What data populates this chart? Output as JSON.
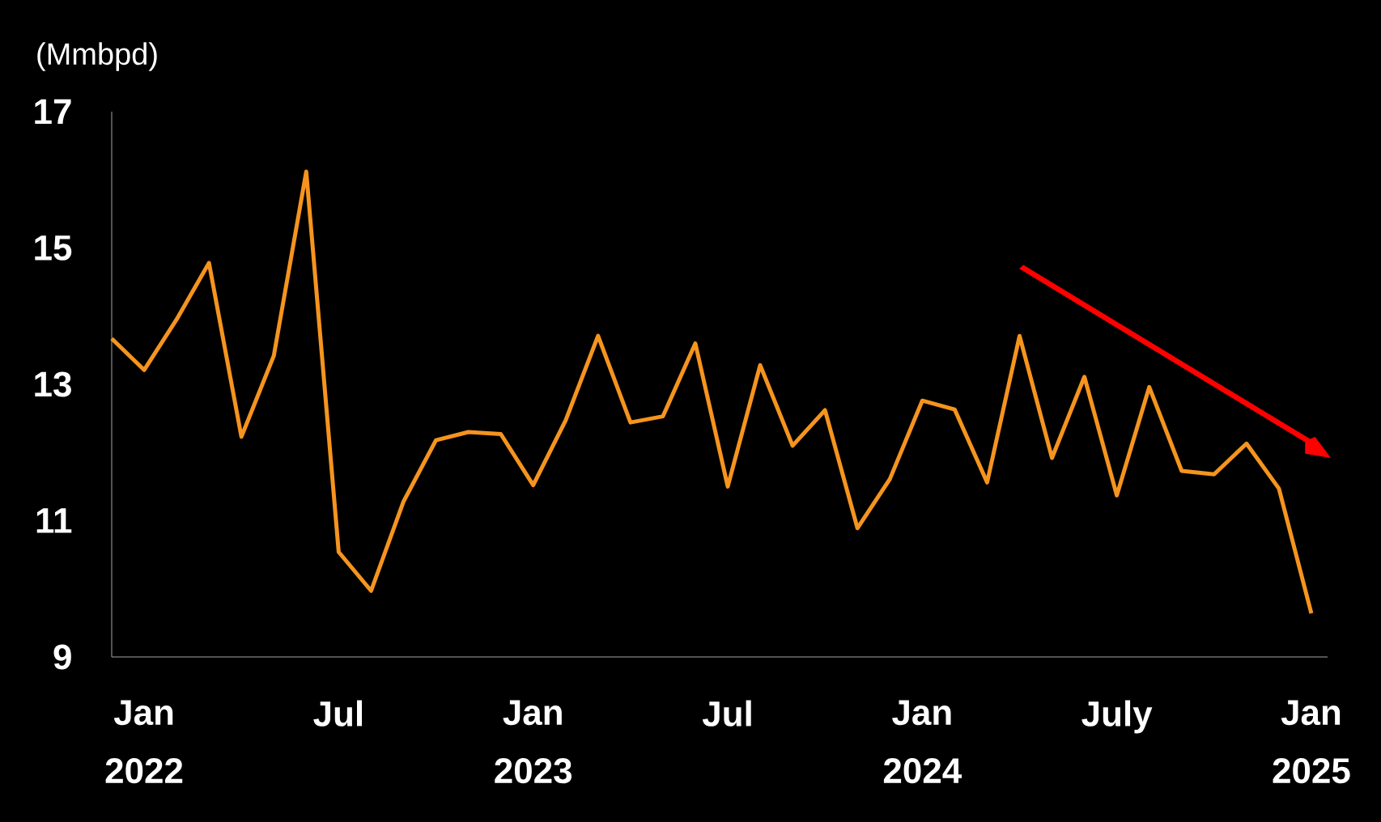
{
  "chart_data": {
    "type": "line",
    "ylabel": "(Mmbpd)",
    "categories": [
      null,
      "Jan 2022",
      null,
      null,
      null,
      null,
      null,
      "Jul",
      null,
      null,
      null,
      null,
      null,
      "Jan 2023",
      null,
      null,
      null,
      null,
      null,
      "Jul",
      null,
      null,
      null,
      null,
      null,
      "Jan 2024",
      null,
      null,
      null,
      null,
      null,
      "July",
      null,
      null,
      null,
      null,
      null,
      "Jan 2025"
    ],
    "series": [
      {
        "color": "#f5941e",
        "values": [
          13.67,
          13.21,
          13.95,
          14.78,
          12.23,
          13.42,
          16.12,
          10.54,
          9.97,
          11.28,
          12.18,
          12.3,
          12.27,
          11.52,
          12.47,
          13.71,
          12.44,
          12.53,
          13.6,
          11.5,
          13.28,
          12.1,
          12.62,
          10.89,
          11.61,
          12.76,
          12.63,
          11.56,
          13.71,
          11.92,
          13.11,
          11.37,
          12.96,
          11.73,
          11.68,
          12.13,
          11.47,
          9.64
        ]
      }
    ],
    "ylim": [
      9,
      17
    ],
    "yticks": [
      9,
      11,
      13,
      15,
      17
    ]
  }
}
